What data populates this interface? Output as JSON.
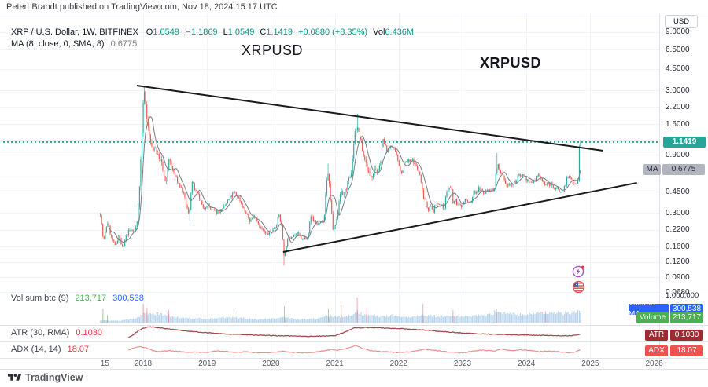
{
  "header": {
    "publish_line": "PeterLBrandt published on TradingView.com, Nov 18, 2024 15:17 UTC"
  },
  "legend": {
    "symbol_line": "XRP / U.S. Dollar, 1W, BITFINEX",
    "ohlc": [
      {
        "k": "O",
        "v": "1.0549"
      },
      {
        "k": "H",
        "v": "1.1869"
      },
      {
        "k": "L",
        "v": "1.0549"
      },
      {
        "k": "C",
        "v": "1.1419"
      }
    ],
    "change": "+0.0880 (+8.35%)",
    "vol": {
      "k": "Vol",
      "v": "6.436M"
    },
    "ma_line": "MA (8, close, 0, SMA, 8)",
    "ma_value": "0.6775"
  },
  "annotations": {
    "label1": "XRPUSD",
    "label2": "XRPUSD"
  },
  "axis": {
    "currency_button": "USD",
    "price_ticks": [
      {
        "label": "9.0000",
        "value": 9.0
      },
      {
        "label": "6.5000",
        "value": 6.5
      },
      {
        "label": "4.5000",
        "value": 4.5
      },
      {
        "label": "3.0000",
        "value": 3.0
      },
      {
        "label": "2.2000",
        "value": 2.2
      },
      {
        "label": "1.6000",
        "value": 1.6
      },
      {
        "label": "0.9000",
        "value": 0.9
      },
      {
        "label": "0.4500",
        "value": 0.45
      },
      {
        "label": "0.3000",
        "value": 0.3
      },
      {
        "label": "0.2200",
        "value": 0.22
      },
      {
        "label": "0.1600",
        "value": 0.16
      },
      {
        "label": "0.1200",
        "value": 0.12
      },
      {
        "label": "0.0900",
        "value": 0.09
      },
      {
        "label": "0.0680",
        "value": 0.068
      }
    ],
    "hidden_grid_values": [
      1.2,
      0.6
    ],
    "volume_scale": {
      "top_label": "1,000,000",
      "zero_label": "0"
    },
    "time_ticks": [
      {
        "label": "15",
        "year": 2017.4
      },
      {
        "label": "2018",
        "year": 2018
      },
      {
        "label": "2019",
        "year": 2019
      },
      {
        "label": "2020",
        "year": 2020
      },
      {
        "label": "2021",
        "year": 2021
      },
      {
        "label": "2022",
        "year": 2022
      },
      {
        "label": "2023",
        "year": 2023
      },
      {
        "label": "2024",
        "year": 2024
      },
      {
        "label": "2025",
        "year": 2025
      },
      {
        "label": "2026",
        "year": 2026
      }
    ]
  },
  "badges": {
    "price": {
      "text": "1.1419"
    },
    "ma": {
      "tag": "MA",
      "text": "0.6775"
    },
    "volume_ma": {
      "tag": "Volume MA",
      "text": "300,538"
    },
    "volume": {
      "tag": "Volume",
      "text": "213,717"
    },
    "atr": {
      "tag": "ATR",
      "text": "0.1030"
    },
    "adx": {
      "tag": "ADX",
      "text": "18.07"
    }
  },
  "panes": {
    "volume": {
      "label": "Vol sum btc (9)",
      "value_green": "213,717",
      "value_blue": "300,538"
    },
    "atr": {
      "label": "ATR (30, RMA)",
      "value": "0.1030"
    },
    "adx": {
      "label": "ADX (14, 14)",
      "value": "18.07"
    }
  },
  "footer": {
    "logo_text": "TradingView"
  },
  "colors": {
    "up": "#26a69a",
    "down": "#ef5350",
    "price_line": "#26a69a",
    "price_badge_bg": "#26a69a",
    "ma_line": "#787b86",
    "ma_badge_bg": "#b2b5be",
    "volume_bar": "#a9cbe8",
    "volume_spike_red": "rgba(239,83,80,0.55)",
    "volume_spike_green": "rgba(67,160,71,0.6)",
    "volume_ma_badge_bg": "#2962ff",
    "volume_badge_bg": "#4caf50",
    "atr_line": "#a5494d",
    "atr_badge_bg": "#9e2b33",
    "adx_line": "#ef8d8f",
    "adx_badge_bg": "#f05151",
    "trendline": "#1b1b1b",
    "value_green": "#4caf50",
    "value_blue": "#2962ff",
    "value_red": "#f23645",
    "grid": "#f0f3fa",
    "separator": "#e0e3eb"
  },
  "chart_data": {
    "type": "candlestick",
    "symbol": "XRPUSD",
    "timeframe": "1W",
    "exchange": "BITFINEX",
    "scale": "log",
    "x_range_years": [
      2017.33,
      2026.0
    ],
    "price_axis_range": [
      0.0668,
      9.6
    ],
    "price_line_value": 1.1419,
    "last_candle": {
      "open": 1.0549,
      "high": 1.1869,
      "low": 1.0549,
      "close": 1.1419
    },
    "prev_candle": {
      "open": 0.55,
      "high": 1.08,
      "low": 0.54,
      "close": 1.0549
    },
    "ma_period": 8,
    "ma_last_value": 0.6775,
    "trendlines": [
      {
        "name": "upper-descending",
        "x1": 2017.9,
        "p1": 3.3,
        "x2": 2025.2,
        "p2": 0.97
      },
      {
        "name": "lower-ascending",
        "x1": 2020.19,
        "p1": 0.1445,
        "x2": 2025.73,
        "p2": 0.53
      }
    ],
    "close_anchors": [
      [
        2017.33,
        0.3
      ],
      [
        2017.38,
        0.17
      ],
      [
        2017.44,
        0.26
      ],
      [
        2017.5,
        0.19
      ],
      [
        2017.56,
        0.16
      ],
      [
        2017.62,
        0.2
      ],
      [
        2017.68,
        0.15
      ],
      [
        2017.74,
        0.2
      ],
      [
        2017.8,
        0.22
      ],
      [
        2017.86,
        0.21
      ],
      [
        2017.9,
        0.24
      ],
      [
        2017.94,
        0.45
      ],
      [
        2017.97,
        1.0
      ],
      [
        2018.0,
        2.3
      ],
      [
        2018.02,
        3.05
      ],
      [
        2018.05,
        1.95
      ],
      [
        2018.08,
        1.45
      ],
      [
        2018.12,
        1.1
      ],
      [
        2018.15,
        0.95
      ],
      [
        2018.18,
        1.1
      ],
      [
        2018.22,
        0.9
      ],
      [
        2018.28,
        0.8
      ],
      [
        2018.32,
        0.62
      ],
      [
        2018.36,
        0.5
      ],
      [
        2018.4,
        0.85
      ],
      [
        2018.45,
        0.7
      ],
      [
        2018.5,
        0.6
      ],
      [
        2018.55,
        0.53
      ],
      [
        2018.62,
        0.45
      ],
      [
        2018.68,
        0.34
      ],
      [
        2018.72,
        0.28
      ],
      [
        2018.76,
        0.55
      ],
      [
        2018.82,
        0.45
      ],
      [
        2018.88,
        0.4
      ],
      [
        2018.94,
        0.32
      ],
      [
        2019.0,
        0.36
      ],
      [
        2019.08,
        0.31
      ],
      [
        2019.17,
        0.31
      ],
      [
        2019.25,
        0.32
      ],
      [
        2019.33,
        0.38
      ],
      [
        2019.42,
        0.44
      ],
      [
        2019.5,
        0.4
      ],
      [
        2019.58,
        0.32
      ],
      [
        2019.67,
        0.26
      ],
      [
        2019.75,
        0.29
      ],
      [
        2019.83,
        0.23
      ],
      [
        2019.92,
        0.2
      ],
      [
        2020.0,
        0.21
      ],
      [
        2020.08,
        0.24
      ],
      [
        2020.13,
        0.29
      ],
      [
        2020.17,
        0.23
      ],
      [
        2020.21,
        0.13
      ],
      [
        2020.25,
        0.175
      ],
      [
        2020.33,
        0.2
      ],
      [
        2020.42,
        0.2
      ],
      [
        2020.5,
        0.18
      ],
      [
        2020.58,
        0.2
      ],
      [
        2020.63,
        0.29
      ],
      [
        2020.67,
        0.26
      ],
      [
        2020.75,
        0.24
      ],
      [
        2020.83,
        0.26
      ],
      [
        2020.87,
        0.55
      ],
      [
        2020.9,
        0.62
      ],
      [
        2020.94,
        0.35
      ],
      [
        2020.97,
        0.22
      ],
      [
        2021.0,
        0.23
      ],
      [
        2021.04,
        0.27
      ],
      [
        2021.08,
        0.45
      ],
      [
        2021.13,
        0.42
      ],
      [
        2021.17,
        0.46
      ],
      [
        2021.21,
        0.55
      ],
      [
        2021.25,
        0.58
      ],
      [
        2021.29,
        1.0
      ],
      [
        2021.31,
        1.35
      ],
      [
        2021.35,
        1.55
      ],
      [
        2021.38,
        1.3
      ],
      [
        2021.42,
        1.1
      ],
      [
        2021.44,
        0.9
      ],
      [
        2021.48,
        0.8
      ],
      [
        2021.52,
        0.65
      ],
      [
        2021.58,
        0.6
      ],
      [
        2021.63,
        0.72
      ],
      [
        2021.67,
        0.62
      ],
      [
        2021.71,
        0.75
      ],
      [
        2021.75,
        1.2
      ],
      [
        2021.79,
        1.05
      ],
      [
        2021.83,
        0.95
      ],
      [
        2021.88,
        1.1
      ],
      [
        2021.92,
        1.0
      ],
      [
        2021.96,
        0.9
      ],
      [
        2022.0,
        0.78
      ],
      [
        2022.04,
        0.62
      ],
      [
        2022.08,
        0.75
      ],
      [
        2022.13,
        0.8
      ],
      [
        2022.17,
        0.78
      ],
      [
        2022.21,
        0.82
      ],
      [
        2022.25,
        0.77
      ],
      [
        2022.29,
        0.7
      ],
      [
        2022.33,
        0.62
      ],
      [
        2022.38,
        0.42
      ],
      [
        2022.42,
        0.39
      ],
      [
        2022.46,
        0.32
      ],
      [
        2022.5,
        0.34
      ],
      [
        2022.54,
        0.31
      ],
      [
        2022.58,
        0.35
      ],
      [
        2022.63,
        0.37
      ],
      [
        2022.67,
        0.34
      ],
      [
        2022.71,
        0.33
      ],
      [
        2022.75,
        0.45
      ],
      [
        2022.79,
        0.48
      ],
      [
        2022.83,
        0.46
      ],
      [
        2022.85,
        0.36
      ],
      [
        2022.88,
        0.38
      ],
      [
        2022.92,
        0.36
      ],
      [
        2022.96,
        0.34
      ],
      [
        2023.0,
        0.35
      ],
      [
        2023.04,
        0.39
      ],
      [
        2023.08,
        0.37
      ],
      [
        2023.13,
        0.36
      ],
      [
        2023.17,
        0.44
      ],
      [
        2023.21,
        0.45
      ],
      [
        2023.25,
        0.47
      ],
      [
        2023.29,
        0.46
      ],
      [
        2023.33,
        0.43
      ],
      [
        2023.38,
        0.46
      ],
      [
        2023.42,
        0.48
      ],
      [
        2023.46,
        0.47
      ],
      [
        2023.5,
        0.47
      ],
      [
        2023.53,
        0.7
      ],
      [
        2023.56,
        0.74
      ],
      [
        2023.58,
        0.63
      ],
      [
        2023.63,
        0.6
      ],
      [
        2023.67,
        0.5
      ],
      [
        2023.71,
        0.52
      ],
      [
        2023.75,
        0.5
      ],
      [
        2023.79,
        0.52
      ],
      [
        2023.83,
        0.55
      ],
      [
        2023.88,
        0.6
      ],
      [
        2023.92,
        0.62
      ],
      [
        2023.96,
        0.61
      ],
      [
        2024.0,
        0.57
      ],
      [
        2024.04,
        0.52
      ],
      [
        2024.08,
        0.54
      ],
      [
        2024.13,
        0.55
      ],
      [
        2024.17,
        0.61
      ],
      [
        2024.21,
        0.62
      ],
      [
        2024.25,
        0.55
      ],
      [
        2024.29,
        0.52
      ],
      [
        2024.33,
        0.51
      ],
      [
        2024.38,
        0.52
      ],
      [
        2024.42,
        0.48
      ],
      [
        2024.46,
        0.49
      ],
      [
        2024.5,
        0.47
      ],
      [
        2024.54,
        0.44
      ],
      [
        2024.58,
        0.46
      ],
      [
        2024.63,
        0.57
      ],
      [
        2024.67,
        0.59
      ],
      [
        2024.71,
        0.56
      ],
      [
        2024.75,
        0.53
      ],
      [
        2024.79,
        0.54
      ],
      [
        2024.81,
        0.55
      ]
    ],
    "wick_specials": [
      {
        "year": 2018.02,
        "high": 3.28
      },
      {
        "year": 2021.35,
        "high": 1.94
      },
      {
        "year": 2023.53,
        "high": 0.93
      },
      {
        "year": 2020.9,
        "high": 0.76
      },
      {
        "year": 2020.21,
        "low": 0.112
      },
      {
        "year": 2018.72,
        "low": 0.26
      }
    ],
    "volume_anchors": [
      [
        2017.33,
        0.1
      ],
      [
        2017.6,
        0.08
      ],
      [
        2017.9,
        0.18
      ],
      [
        2018.0,
        0.38
      ],
      [
        2018.1,
        0.42
      ],
      [
        2018.25,
        0.38
      ],
      [
        2018.4,
        0.3
      ],
      [
        2018.6,
        0.22
      ],
      [
        2018.8,
        0.18
      ],
      [
        2019.0,
        0.16
      ],
      [
        2019.3,
        0.22
      ],
      [
        2019.5,
        0.2
      ],
      [
        2019.8,
        0.14
      ],
      [
        2020.0,
        0.16
      ],
      [
        2020.2,
        0.24
      ],
      [
        2020.4,
        0.14
      ],
      [
        2020.7,
        0.16
      ],
      [
        2020.9,
        0.3
      ],
      [
        2021.0,
        0.26
      ],
      [
        2021.2,
        0.3
      ],
      [
        2021.35,
        0.44
      ],
      [
        2021.5,
        0.32
      ],
      [
        2021.7,
        0.28
      ],
      [
        2021.85,
        0.3
      ],
      [
        2022.0,
        0.26
      ],
      [
        2022.2,
        0.24
      ],
      [
        2022.4,
        0.34
      ],
      [
        2022.6,
        0.26
      ],
      [
        2022.8,
        0.28
      ],
      [
        2023.0,
        0.26
      ],
      [
        2023.2,
        0.3
      ],
      [
        2023.4,
        0.32
      ],
      [
        2023.55,
        0.5
      ],
      [
        2023.7,
        0.4
      ],
      [
        2023.85,
        0.36
      ],
      [
        2024.0,
        0.34
      ],
      [
        2024.15,
        0.38
      ],
      [
        2024.3,
        0.4
      ],
      [
        2024.45,
        0.42
      ],
      [
        2024.6,
        0.4
      ],
      [
        2024.7,
        0.42
      ],
      [
        2024.81,
        0.5
      ]
    ],
    "volume_spikes": [
      {
        "year": 2017.37,
        "frac": 0.55,
        "color": "green"
      },
      {
        "year": 2017.4,
        "frac": 0.35,
        "color": "red"
      },
      {
        "year": 2017.44,
        "frac": 0.3,
        "color": "green"
      },
      {
        "year": 2018.0,
        "frac": 0.75,
        "color": "red"
      },
      {
        "year": 2018.06,
        "frac": 0.6,
        "color": "red"
      },
      {
        "year": 2018.4,
        "frac": 0.5,
        "color": "red"
      },
      {
        "year": 2019.42,
        "frac": 0.55,
        "color": "red"
      },
      {
        "year": 2020.21,
        "frac": 0.65,
        "color": "red"
      },
      {
        "year": 2020.9,
        "frac": 0.55,
        "color": "red"
      },
      {
        "year": 2021.1,
        "frac": 0.7,
        "color": "red"
      },
      {
        "year": 2021.35,
        "frac": 1.0,
        "color": "red"
      },
      {
        "year": 2021.5,
        "frac": 0.6,
        "color": "red"
      },
      {
        "year": 2022.38,
        "frac": 0.75,
        "color": "red"
      },
      {
        "year": 2022.85,
        "frac": 0.5,
        "color": "red"
      },
      {
        "year": 2023.53,
        "frac": 0.55,
        "color": "red"
      },
      {
        "year": 2024.3,
        "frac": 0.45,
        "color": "red"
      },
      {
        "year": 2024.62,
        "frac": 0.5,
        "color": "red"
      }
    ],
    "atr_anchors": [
      [
        2017.77,
        0.18
      ],
      [
        2017.85,
        0.4
      ],
      [
        2017.95,
        0.75
      ],
      [
        2018.05,
        0.92
      ],
      [
        2018.15,
        0.95
      ],
      [
        2018.3,
        0.85
      ],
      [
        2018.5,
        0.75
      ],
      [
        2018.75,
        0.62
      ],
      [
        2019.0,
        0.52
      ],
      [
        2019.3,
        0.44
      ],
      [
        2019.6,
        0.38
      ],
      [
        2019.9,
        0.32
      ],
      [
        2020.2,
        0.3
      ],
      [
        2020.5,
        0.26
      ],
      [
        2020.8,
        0.28
      ],
      [
        2021.0,
        0.3
      ],
      [
        2021.15,
        0.55
      ],
      [
        2021.3,
        0.88
      ],
      [
        2021.5,
        0.9
      ],
      [
        2021.7,
        0.88
      ],
      [
        2021.9,
        0.85
      ],
      [
        2022.1,
        0.8
      ],
      [
        2022.4,
        0.72
      ],
      [
        2022.7,
        0.6
      ],
      [
        2023.0,
        0.5
      ],
      [
        2023.3,
        0.44
      ],
      [
        2023.6,
        0.4
      ],
      [
        2023.9,
        0.36
      ],
      [
        2024.2,
        0.33
      ],
      [
        2024.5,
        0.31
      ],
      [
        2024.7,
        0.3
      ],
      [
        2024.85,
        0.42
      ]
    ],
    "adx_anchors": [
      [
        2017.77,
        0.45
      ],
      [
        2017.85,
        0.6
      ],
      [
        2017.95,
        0.72
      ],
      [
        2018.05,
        0.6
      ],
      [
        2018.15,
        0.42
      ],
      [
        2018.25,
        0.35
      ],
      [
        2018.4,
        0.42
      ],
      [
        2018.55,
        0.38
      ],
      [
        2018.7,
        0.3
      ],
      [
        2018.85,
        0.32
      ],
      [
        2019.0,
        0.28
      ],
      [
        2019.15,
        0.4
      ],
      [
        2019.3,
        0.36
      ],
      [
        2019.45,
        0.3
      ],
      [
        2019.6,
        0.34
      ],
      [
        2019.75,
        0.28
      ],
      [
        2019.9,
        0.26
      ],
      [
        2020.05,
        0.32
      ],
      [
        2020.2,
        0.38
      ],
      [
        2020.35,
        0.3
      ],
      [
        2020.5,
        0.27
      ],
      [
        2020.65,
        0.3
      ],
      [
        2020.8,
        0.38
      ],
      [
        2020.95,
        0.5
      ],
      [
        2021.05,
        0.44
      ],
      [
        2021.2,
        0.6
      ],
      [
        2021.32,
        0.78
      ],
      [
        2021.45,
        0.55
      ],
      [
        2021.6,
        0.38
      ],
      [
        2021.75,
        0.35
      ],
      [
        2021.9,
        0.32
      ],
      [
        2022.05,
        0.28
      ],
      [
        2022.2,
        0.36
      ],
      [
        2022.4,
        0.52
      ],
      [
        2022.55,
        0.46
      ],
      [
        2022.7,
        0.36
      ],
      [
        2022.85,
        0.3
      ],
      [
        2023.0,
        0.27
      ],
      [
        2023.15,
        0.38
      ],
      [
        2023.3,
        0.46
      ],
      [
        2023.5,
        0.4
      ],
      [
        2023.6,
        0.55
      ],
      [
        2023.75,
        0.42
      ],
      [
        2023.9,
        0.48
      ],
      [
        2024.05,
        0.44
      ],
      [
        2024.2,
        0.36
      ],
      [
        2024.35,
        0.4
      ],
      [
        2024.5,
        0.34
      ],
      [
        2024.65,
        0.28
      ],
      [
        2024.75,
        0.3
      ],
      [
        2024.85,
        0.5
      ]
    ]
  }
}
